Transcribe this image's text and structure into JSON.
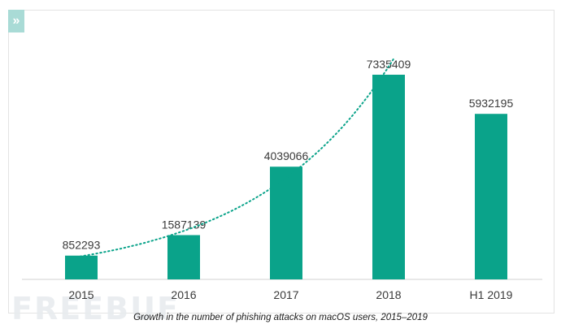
{
  "page": {
    "caption": "Growth in the number of phishing attacks on macOS users, 2015–2019",
    "watermark": "FREEBUF",
    "corner_icon": "double-chevron-right-icon"
  },
  "chart_data": {
    "type": "bar",
    "categories": [
      "2015",
      "2016",
      "2017",
      "2018",
      "H1 2019"
    ],
    "values": [
      852293,
      1587139,
      4039066,
      7335409,
      5932195
    ],
    "data_labels": [
      "852293",
      "1587139",
      "4039066",
      "7335409",
      "5932195"
    ],
    "title": "",
    "xlabel": "",
    "ylabel": "",
    "ylim": [
      0,
      8000000
    ],
    "trendline": "exponential",
    "trendline_style": "dotted",
    "grid": false,
    "legend": "none",
    "colors": {
      "bar": "#0aa38a",
      "trend": "#0aa38a",
      "label": "#3a3a3a",
      "axis": "#d0d0d0"
    }
  }
}
